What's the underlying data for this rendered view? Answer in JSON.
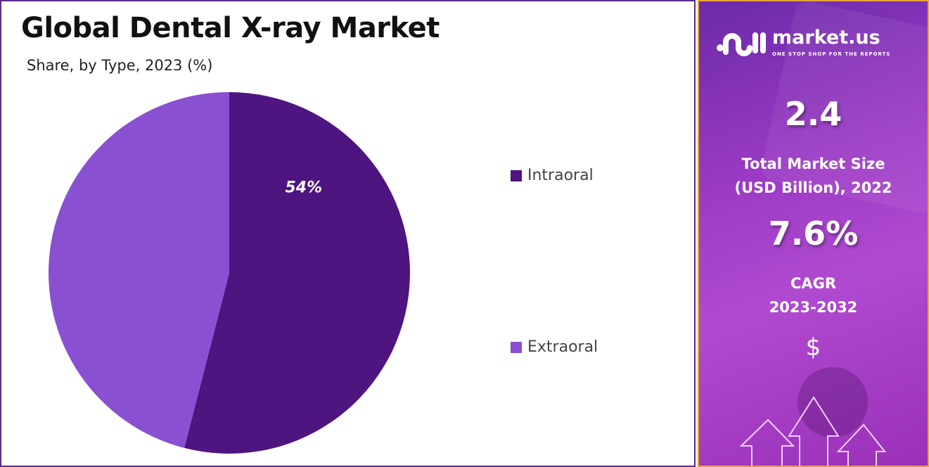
{
  "chart_data": {
    "type": "pie",
    "title": "Global Dental X-ray Market",
    "subtitle": "Share, by Type, 2023 (%)",
    "slices": [
      {
        "name": "Intraoral",
        "value": 54,
        "label": "54%",
        "color": "#4e1480"
      },
      {
        "name": "Extraoral",
        "value": 46,
        "label": "",
        "color": "#8a50d2"
      }
    ],
    "legend_placement": "right"
  },
  "panel": {
    "logo_name": "market.us",
    "logo_tagline": "ONE STOP SHOP FOR THE REPORTS",
    "market_size": "2.4",
    "market_size_label_1": "Total Market Size",
    "market_size_label_2": "(USD Billion), 2022",
    "cagr": "7.6%",
    "cagr_label_1": "CAGR",
    "cagr_label_2": "2023-2032",
    "currency_symbol": "$"
  }
}
